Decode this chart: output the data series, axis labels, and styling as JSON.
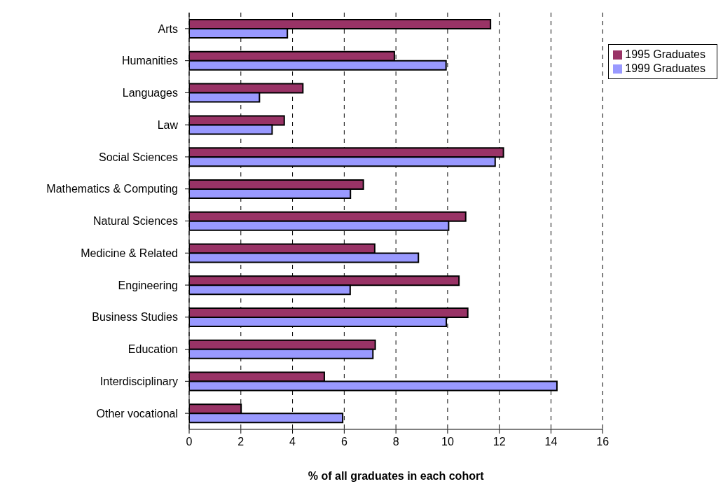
{
  "chart_data": {
    "type": "bar",
    "orientation": "horizontal",
    "xlabel": "% of all graduates in each cohort",
    "categories": [
      "Arts",
      "Humanities",
      "Languages",
      "Law",
      "Social Sciences",
      "Mathematics & Computing",
      "Natural Sciences",
      "Medicine & Related",
      "Engineering",
      "Business Studies",
      "Education",
      "Interdisciplinary",
      "Other vocational"
    ],
    "series": [
      {
        "name": "1995 Graduates",
        "color": "#993366",
        "values": [
          11.66,
          7.94,
          4.4,
          3.68,
          12.16,
          6.74,
          10.7,
          7.18,
          10.44,
          10.78,
          7.2,
          5.23,
          2.01
        ]
      },
      {
        "name": "1999 Graduates",
        "color": "#9999ff",
        "values": [
          3.8,
          9.94,
          2.72,
          3.21,
          11.84,
          6.24,
          10.04,
          8.87,
          6.23,
          9.95,
          7.11,
          14.23,
          5.94
        ]
      }
    ],
    "xlim": [
      0,
      16
    ],
    "xticks": [
      0,
      2,
      4,
      6,
      8,
      10,
      12,
      14,
      16
    ],
    "grid": "x",
    "legend": "top right"
  }
}
